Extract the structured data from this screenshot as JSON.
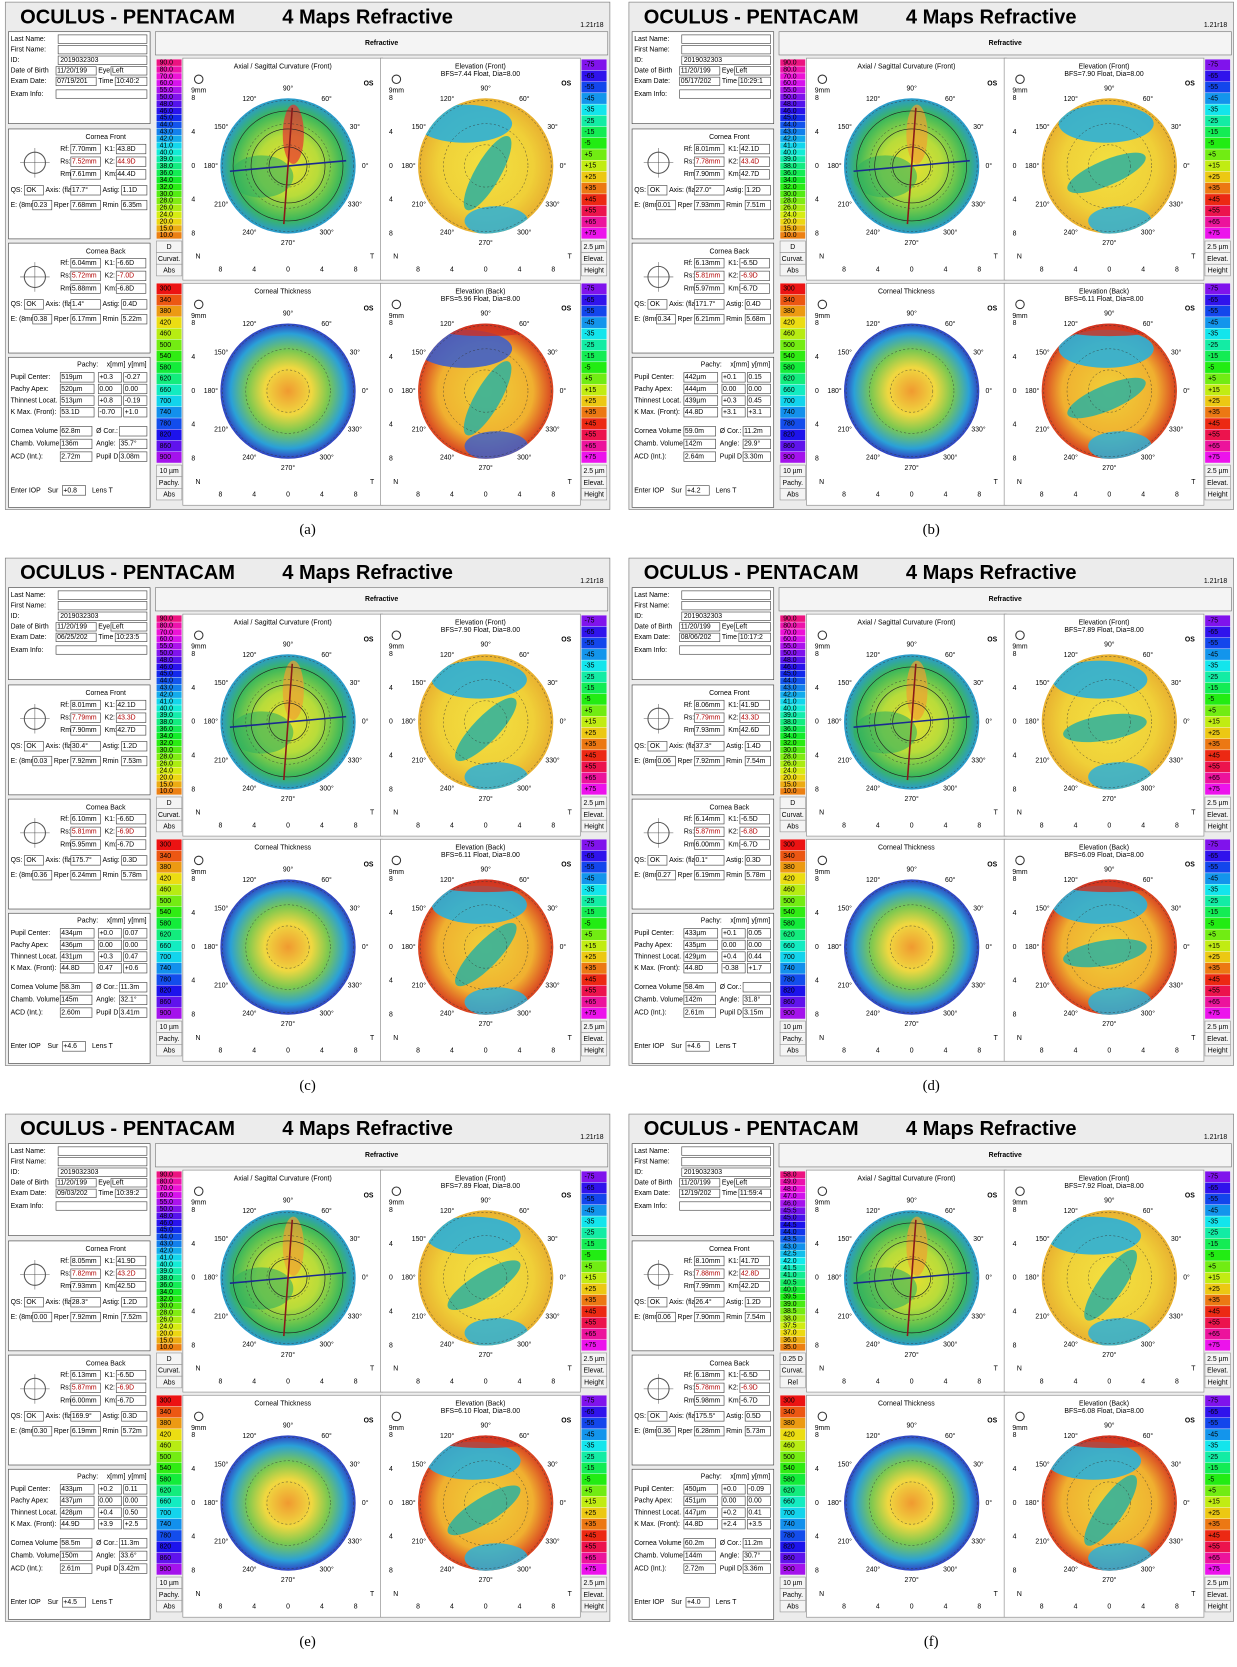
{
  "header": {
    "brand": "OCULUS  -  PENTACAM",
    "title": "4 Maps Refractive",
    "version": "1.21r18"
  },
  "shared": {
    "refractive": "Refractive",
    "eye_label": "OS",
    "zoom": "9mm",
    "map_titles": {
      "axial": "Axial / Sagittal Curvature (Front)",
      "elev_front": "Elevation (Front)",
      "thickness": "Corneal Thickness",
      "elev_back": "Elevation (Back)"
    },
    "axis_ticks": [
      "8",
      "4",
      "0",
      "4",
      "8"
    ],
    "nasal": "N",
    "temporal": "T",
    "angles": [
      "0°",
      "30°",
      "60°",
      "90°",
      "120°",
      "150°",
      "180°",
      "210°",
      "240°",
      "270°",
      "300°",
      "330°"
    ],
    "labels": {
      "last_name": "Last Name:",
      "first_name": "First Name:",
      "id": "ID:",
      "dob": "Date of Birth",
      "eye": "Eye:",
      "exam_date": "Exam Date:",
      "time": "Time",
      "exam_info": "Exam Info:",
      "cornea_front": "Cornea Front",
      "cornea_back": "Cornea Back",
      "rf": "Rf:",
      "k1": "K1:",
      "rs": "Rs:",
      "k2": "K2:",
      "rm": "Rm:",
      "km": "Km:",
      "qs": "QS:",
      "axis": "Axis: (flat)",
      "astig": "Astig:",
      "e": "E: (8mm)",
      "rper": "Rper",
      "rmin": "Rmin",
      "pachy": "Pachy:",
      "xmm": "x[mm]",
      "ymm": "y[mm]",
      "pupil_center": "Pupil Center:",
      "pachy_apex": "Pachy Apex:",
      "thinnest": "Thinnest Locat.",
      "kmax": "K Max. (Front):",
      "cornea_volume": "Cornea Volume",
      "cor": "Ø Cor.:",
      "chamb_volume": "Chamb. Volume",
      "angle": "Angle:",
      "acd": "ACD (Int.):",
      "pupil_d": "Pupil D",
      "iop": "Enter IOP",
      "sur": "Sur",
      "lens": "Lens T"
    },
    "scales": {
      "axial": [
        "90.0",
        "80.0",
        "70.0",
        "60.0",
        "55.0",
        "50.0",
        "48.0",
        "46.0",
        "45.0",
        "44.0",
        "43.0",
        "42.0",
        "41.0",
        "40.0",
        "39.0",
        "38.0",
        "36.0",
        "34.0",
        "32.0",
        "30.0",
        "28.0",
        "26.0",
        "24.0",
        "20.0",
        "15.0",
        "10.0"
      ],
      "axial_units": [
        "D",
        "Curvat.",
        "Abs"
      ],
      "elevation": [
        "-75",
        "-65",
        "-55",
        "-45",
        "-35",
        "-25",
        "-15",
        "-5",
        "+5",
        "+15",
        "+25",
        "+35",
        "+45",
        "+55",
        "+65",
        "+75"
      ],
      "elevation_units": [
        "2.5 µm",
        "Elevat.",
        "Height"
      ],
      "thickness": [
        "300",
        "340",
        "380",
        "420",
        "460",
        "500",
        "540",
        "580",
        "620",
        "660",
        "700",
        "740",
        "780",
        "820",
        "860",
        "900"
      ],
      "thickness_units": [
        "10 µm",
        "Pachy.",
        "Abs"
      ]
    }
  },
  "panels": [
    {
      "caption": "(a)",
      "id": "2019032303",
      "dob": "11/20/199",
      "eye": "Left",
      "exam_date": "07/19/201",
      "time": "10:40:2",
      "front": {
        "rf": "7.70mm",
        "k1": "43.8D",
        "rs": "7.52mm",
        "k2": "44.9D",
        "rm": "7.61mm",
        "km": "44.4D",
        "qs": "OK",
        "axis": "17.7°",
        "astig": "1.1D",
        "e": "0.23",
        "rper": "7.68mm",
        "rmin": "6.35m"
      },
      "back": {
        "rf": "6.04mm",
        "k1": "-6.6D",
        "rs": "5.72mm",
        "k2": "-7.0D",
        "rm": "5.88mm",
        "km": "-6.8D",
        "qs": "OK",
        "axis": "1.4°",
        "astig": "0.4D",
        "e": "0.38",
        "rper": "6.17mm",
        "rmin": "5.22m"
      },
      "pachy": {
        "pupil_center": [
          "519µm",
          "+0.3",
          "-0.27"
        ],
        "pachy_apex": [
          "520µm",
          "0.00",
          "0.00"
        ],
        "thinnest": [
          "513µm",
          "+0.8",
          "-0.19"
        ],
        "kmax": [
          "53.1D",
          "-0.70",
          "+1.0"
        ]
      },
      "cornea_volume": "62.8m",
      "cor": "",
      "chamb_volume": "136m",
      "angle": "35.7°",
      "acd": "2.72m",
      "pupil_d": "3.08m",
      "iop": "+0.8",
      "bfs_front": "BFS=7.44 Float, Dia=8.00",
      "bfs_back": "BFS=5.96 Float, Dia=8.00"
    },
    {
      "caption": "(b)",
      "id": "2019032303",
      "dob": "11/20/199",
      "eye": "Left",
      "exam_date": "05/17/202",
      "time": "10:29:1",
      "front": {
        "rf": "8.01mm",
        "k1": "42.1D",
        "rs": "7.78mm",
        "k2": "43.4D",
        "rm": "7.90mm",
        "km": "42.7D",
        "qs": "OK",
        "axis": "27.0°",
        "astig": "1.2D",
        "e": "0.01",
        "rper": "7.93mm",
        "rmin": "7.51m"
      },
      "back": {
        "rf": "6.13mm",
        "k1": "-6.5D",
        "rs": "5.81mm",
        "k2": "-6.9D",
        "rm": "5.97mm",
        "km": "-6.7D",
        "qs": "OK",
        "axis": "171.7°",
        "astig": "0.4D",
        "e": "0.34",
        "rper": "6.21mm",
        "rmin": "5.68m"
      },
      "pachy": {
        "pupil_center": [
          "442µm",
          "+0.1",
          "0.15"
        ],
        "pachy_apex": [
          "444µm",
          "0.00",
          "0.00"
        ],
        "thinnest": [
          "439µm",
          "+0.3",
          "0.45"
        ],
        "kmax": [
          "44.8D",
          "+3.1",
          "+3.1"
        ]
      },
      "cornea_volume": "59.0m",
      "cor": "11.2m",
      "chamb_volume": "142m",
      "angle": "29.9°",
      "acd": "2.64m",
      "pupil_d": "3.30m",
      "iop": "+4.2",
      "bfs_front": "BFS=7.90 Float, Dia=8.00",
      "bfs_back": "BFS=6.11 Float, Dia=8.00"
    },
    {
      "caption": "(c)",
      "id": "2019032303",
      "dob": "11/20/199",
      "eye": "Left",
      "exam_date": "06/25/202",
      "time": "10:23:5",
      "front": {
        "rf": "8.01mm",
        "k1": "42.1D",
        "rs": "7.79mm",
        "k2": "43.3D",
        "rm": "7.90mm",
        "km": "42.7D",
        "qs": "OK",
        "axis": "30.4°",
        "astig": "1.2D",
        "e": "0.03",
        "rper": "7.92mm",
        "rmin": "7.53m"
      },
      "back": {
        "rf": "6.10mm",
        "k1": "-6.6D",
        "rs": "5.81mm",
        "k2": "-6.9D",
        "rm": "5.95mm",
        "km": "-6.7D",
        "qs": "OK",
        "axis": "175.7°",
        "astig": "0.3D",
        "e": "0.36",
        "rper": "6.24mm",
        "rmin": "5.78m"
      },
      "pachy": {
        "pupil_center": [
          "434µm",
          "+0.0",
          "0.07"
        ],
        "pachy_apex": [
          "436µm",
          "0.00",
          "0.00"
        ],
        "thinnest": [
          "431µm",
          "+0.3",
          "0.47"
        ],
        "kmax": [
          "44.8D",
          "0.47",
          "+0.6"
        ]
      },
      "cornea_volume": "58.3m",
      "cor": "11.3m",
      "chamb_volume": "145m",
      "angle": "32.1°",
      "acd": "2.60m",
      "pupil_d": "3.41m",
      "iop": "+4.6",
      "bfs_front": "BFS=7.90 Float, Dia=8.00",
      "bfs_back": "BFS=6.11 Float, Dia=8.00"
    },
    {
      "caption": "(d)",
      "id": "2019032303",
      "dob": "11/20/199",
      "eye": "Left",
      "exam_date": "08/06/202",
      "time": "10:17:2",
      "front": {
        "rf": "8.06mm",
        "k1": "41.9D",
        "rs": "7.79mm",
        "k2": "43.3D",
        "rm": "7.93mm",
        "km": "42.6D",
        "qs": "OK",
        "axis": "37.3°",
        "astig": "1.4D",
        "e": "0.06",
        "rper": "7.92mm",
        "rmin": "7.54m"
      },
      "back": {
        "rf": "6.14mm",
        "k1": "-6.5D",
        "rs": "5.87mm",
        "k2": "-6.8D",
        "rm": "6.00mm",
        "km": "-6.7D",
        "qs": "OK",
        "axis": "0.1°",
        "astig": "0.3D",
        "e": "0.27",
        "rper": "6.19mm",
        "rmin": "5.78m"
      },
      "pachy": {
        "pupil_center": [
          "433µm",
          "+0.1",
          "0.05"
        ],
        "pachy_apex": [
          "435µm",
          "0.00",
          "0.00"
        ],
        "thinnest": [
          "429µm",
          "+0.4",
          "0.44"
        ],
        "kmax": [
          "44.8D",
          "-0.38",
          "+1.7"
        ]
      },
      "cornea_volume": "58.4m",
      "cor": "",
      "chamb_volume": "142m",
      "angle": "31.8°",
      "acd": "2.61m",
      "pupil_d": "3.15m",
      "iop": "+4.6",
      "bfs_front": "BFS=7.89 Float, Dia=8.00",
      "bfs_back": "BFS=6.09 Float, Dia=8.00"
    },
    {
      "caption": "(e)",
      "id": "2019032303",
      "dob": "11/20/199",
      "eye": "Left",
      "exam_date": "09/03/202",
      "time": "10:39:2",
      "front": {
        "rf": "8.05mm",
        "k1": "41.9D",
        "rs": "7.82mm",
        "k2": "43.2D",
        "rm": "7.93mm",
        "km": "42.5D",
        "qs": "OK",
        "axis": "28.3°",
        "astig": "1.2D",
        "e": "0.00",
        "rper": "7.92mm",
        "rmin": "7.52m"
      },
      "back": {
        "rf": "6.13mm",
        "k1": "-6.5D",
        "rs": "5.87mm",
        "k2": "-6.9D",
        "rm": "6.00mm",
        "km": "-6.7D",
        "qs": "OK",
        "axis": "169.9°",
        "astig": "0.3D",
        "e": "0.30",
        "rper": "6.19mm",
        "rmin": "5.72m"
      },
      "pachy": {
        "pupil_center": [
          "433µm",
          "+0.2",
          "0.11"
        ],
        "pachy_apex": [
          "437µm",
          "0.00",
          "0.00"
        ],
        "thinnest": [
          "428µm",
          "+0.4",
          "0.50"
        ],
        "kmax": [
          "44.9D",
          "+3.9",
          "+2.5"
        ]
      },
      "cornea_volume": "58.5m",
      "cor": "11.3m",
      "chamb_volume": "150m",
      "angle": "33.6°",
      "acd": "2.61m",
      "pupil_d": "3.42m",
      "iop": "+4.5",
      "bfs_front": "BFS=7.89 Float, Dia=8.00",
      "bfs_back": "BFS=6.10 Float, Dia=8.00"
    },
    {
      "caption": "(f)",
      "id": "2019032303",
      "dob": "11/20/199",
      "eye": "Left",
      "exam_date": "12/19/202",
      "time": "11:59:4",
      "front": {
        "rf": "8.10mm",
        "k1": "41.7D",
        "rs": "7.88mm",
        "k2": "42.8D",
        "rm": "7.99mm",
        "km": "42.2D",
        "qs": "OK",
        "axis": "26.4°",
        "astig": "1.2D",
        "e": "0.06",
        "rper": "7.90mm",
        "rmin": "7.54m"
      },
      "back": {
        "rf": "6.18mm",
        "k1": "-6.5D",
        "rs": "5.78mm",
        "k2": "-6.9D",
        "rm": "5.98mm",
        "km": "-6.7D",
        "qs": "OK",
        "axis": "175.5°",
        "astig": "0.5D",
        "e": "0.36",
        "rper": "6.28mm",
        "rmin": "5.73m"
      },
      "pachy": {
        "pupil_center": [
          "450µm",
          "+0.0",
          "-0.09"
        ],
        "pachy_apex": [
          "451µm",
          "0.00",
          "0.00"
        ],
        "thinnest": [
          "447µm",
          "+0.2",
          "0.41"
        ],
        "kmax": [
          "44.8D",
          "+2.4",
          "+3.5"
        ]
      },
      "cornea_volume": "60.2m",
      "cor": "11.2m",
      "chamb_volume": "144m",
      "angle": "30.7°",
      "acd": "2.72m",
      "pupil_d": "3.36m",
      "iop": "+4.0",
      "bfs_front": "BFS=7.92 Float, Dia=8.00",
      "bfs_back": "BFS=6.08 Float, Dia=8.00",
      "axial_scale": [
        "58.0",
        "49.0",
        "48.0",
        "47.0",
        "46.0",
        "45.5",
        "45.0",
        "44.5",
        "44.0",
        "43.5",
        "43.0",
        "42.5",
        "42.0",
        "41.5",
        "41.0",
        "40.5",
        "40.0",
        "39.5",
        "39.0",
        "38.5",
        "38.0",
        "37.5",
        "37.0",
        "36.0",
        "35.0"
      ],
      "axial_units": [
        "0.25 D",
        "Curvat.",
        "Rel"
      ]
    }
  ]
}
